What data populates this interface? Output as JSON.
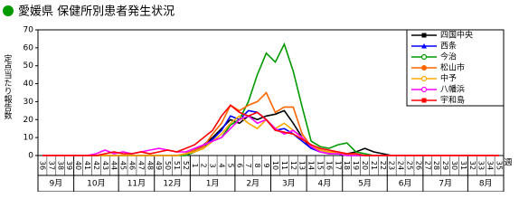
{
  "chart_data": {
    "type": "line",
    "title": "愛媛県 保健所別患者発生状況",
    "y_label": "定点当たり報告数",
    "x_label": "週",
    "categories": [
      36,
      37,
      38,
      39,
      40,
      41,
      42,
      43,
      44,
      45,
      46,
      47,
      48,
      49,
      50,
      51,
      52,
      1,
      2,
      3,
      4,
      5,
      6,
      7,
      8,
      9,
      10,
      11,
      12,
      13,
      14,
      15,
      16,
      17,
      18,
      19,
      20,
      21,
      22,
      23,
      24,
      25,
      26,
      27,
      28,
      29,
      30,
      31,
      32,
      33,
      34,
      35
    ],
    "x_groups": [
      "9月",
      null,
      null,
      null,
      "10月",
      null,
      null,
      null,
      null,
      "11月",
      null,
      null,
      null,
      "12月",
      null,
      null,
      null,
      "1月",
      null,
      null,
      null,
      null,
      "2月",
      null,
      null,
      null,
      "3月",
      null,
      null,
      null,
      "4月",
      null,
      null,
      null,
      "5月",
      null,
      null,
      null,
      null,
      "6月",
      null,
      null,
      null,
      "7月",
      null,
      null,
      null,
      null,
      "8月",
      null,
      null,
      null
    ],
    "ylim": [
      0,
      70
    ],
    "yticks": [
      0,
      10,
      20,
      30,
      40,
      50,
      60,
      70
    ],
    "grid": false,
    "legend": "top-right",
    "series": [
      {
        "name": "四国中央",
        "color": "#000000",
        "marker": "square",
        "values": [
          0,
          0,
          0,
          0,
          0,
          0,
          0,
          0,
          0,
          0,
          0,
          0,
          0,
          0,
          0,
          0,
          1,
          3,
          6,
          10,
          15,
          20,
          18,
          22,
          20,
          22,
          23,
          25,
          18,
          10,
          4,
          3,
          2,
          1,
          1,
          2,
          4,
          2,
          1,
          0,
          0,
          0,
          0,
          0,
          0,
          0,
          0,
          0,
          0,
          0,
          0,
          0
        ]
      },
      {
        "name": "西条",
        "color": "#0000ff",
        "marker": "triangle",
        "values": [
          0,
          0,
          0,
          0,
          0,
          0,
          0,
          0,
          0,
          0,
          0,
          0,
          0,
          0,
          0,
          0,
          1,
          3,
          5,
          9,
          14,
          22,
          20,
          25,
          24,
          20,
          14,
          15,
          12,
          8,
          4,
          2,
          1,
          1,
          0,
          0,
          0,
          0,
          0,
          0,
          0,
          0,
          0,
          0,
          0,
          0,
          0,
          0,
          0,
          0,
          0,
          0
        ]
      },
      {
        "name": "今治",
        "color": "#009900",
        "marker": "circle-open",
        "values": [
          0,
          0,
          0,
          0,
          0,
          0,
          0,
          0,
          0,
          0,
          0,
          0,
          0,
          0,
          0,
          0,
          0,
          2,
          4,
          8,
          10,
          17,
          20,
          30,
          45,
          57,
          52,
          62,
          47,
          27,
          8,
          5,
          4,
          6,
          7,
          2,
          1,
          0,
          0,
          0,
          0,
          0,
          0,
          0,
          0,
          0,
          0,
          0,
          0,
          0,
          0,
          0
        ]
      },
      {
        "name": "松山市",
        "color": "#ff6600",
        "marker": "circle",
        "values": [
          0,
          0,
          0,
          0,
          0,
          0,
          0,
          0,
          0,
          0,
          0,
          0,
          0,
          0,
          0,
          0,
          1,
          3,
          5,
          12,
          18,
          28,
          25,
          28,
          30,
          35,
          24,
          27,
          27,
          12,
          5,
          3,
          2,
          2,
          1,
          1,
          0,
          0,
          0,
          0,
          0,
          0,
          0,
          0,
          0,
          0,
          0,
          0,
          0,
          0,
          0,
          0
        ]
      },
      {
        "name": "中予",
        "color": "#ffaa00",
        "marker": "circle-open",
        "values": [
          0,
          0,
          0,
          0,
          0,
          0,
          0,
          0,
          0,
          0,
          0,
          0,
          0,
          0,
          0,
          0,
          1,
          2,
          4,
          8,
          12,
          18,
          22,
          18,
          15,
          20,
          15,
          18,
          14,
          10,
          5,
          3,
          2,
          1,
          1,
          0,
          0,
          0,
          0,
          0,
          0,
          0,
          0,
          0,
          0,
          0,
          0,
          0,
          0,
          0,
          0,
          0
        ]
      },
      {
        "name": "八幡浜",
        "color": "#ff00ff",
        "marker": "circle-open",
        "values": [
          0,
          0,
          0,
          0,
          0,
          0,
          1,
          3,
          1,
          2,
          1,
          2,
          3,
          4,
          3,
          2,
          2,
          4,
          6,
          8,
          10,
          15,
          20,
          22,
          18,
          20,
          15,
          12,
          14,
          10,
          5,
          2,
          1,
          1,
          0,
          0,
          0,
          0,
          0,
          0,
          0,
          0,
          0,
          0,
          0,
          0,
          0,
          0,
          0,
          0,
          0,
          0
        ]
      },
      {
        "name": "宇和島",
        "color": "#ff0000",
        "marker": "square",
        "values": [
          0,
          0,
          0,
          0,
          0,
          0,
          0,
          1,
          2,
          1,
          1,
          2,
          1,
          2,
          3,
          2,
          4,
          6,
          10,
          14,
          22,
          28,
          24,
          22,
          24,
          20,
          14,
          13,
          12,
          9,
          6,
          4,
          3,
          2,
          1,
          1,
          0,
          0,
          0,
          0,
          0,
          0,
          0,
          0,
          0,
          0,
          0,
          0,
          0,
          0,
          0,
          0
        ]
      }
    ]
  }
}
